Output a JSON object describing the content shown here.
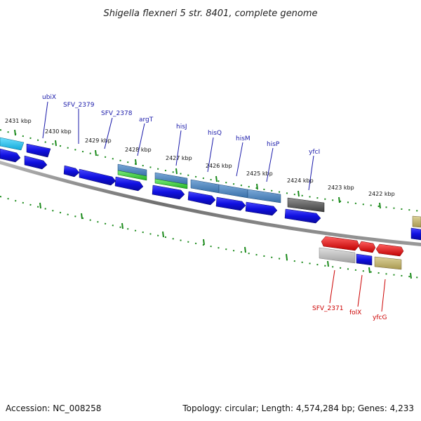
{
  "title": "Shigella flexneri 5 str. 8401, complete genome",
  "footer": {
    "accession": "Accession: NC_008258",
    "topology": "Topology: circular; Length: 4,574,284 bp; Genes: 4,233"
  },
  "scale_labels": [
    "2431 kbp",
    "2430 kbp",
    "2429 kbp",
    "2428 kbp",
    "2427 kbp",
    "2426 kbp",
    "2425 kbp",
    "2424 kbp",
    "2423 kbp",
    "2422 kbp"
  ],
  "genes_top": [
    "ubiX",
    "SFV_2379",
    "SFV_2378",
    "argT",
    "hisJ",
    "hisQ",
    "hisM",
    "hisP",
    "yfcI"
  ],
  "genes_bottom": [
    "SFV_2371",
    "folX",
    "yfcG"
  ],
  "colors": {
    "forward_gene_label": "#1a1aaa",
    "reverse_gene_label": "#cc0000",
    "cds_blue": "#1515e0",
    "tick": "#1a8a1a",
    "backbone": "#808080"
  }
}
